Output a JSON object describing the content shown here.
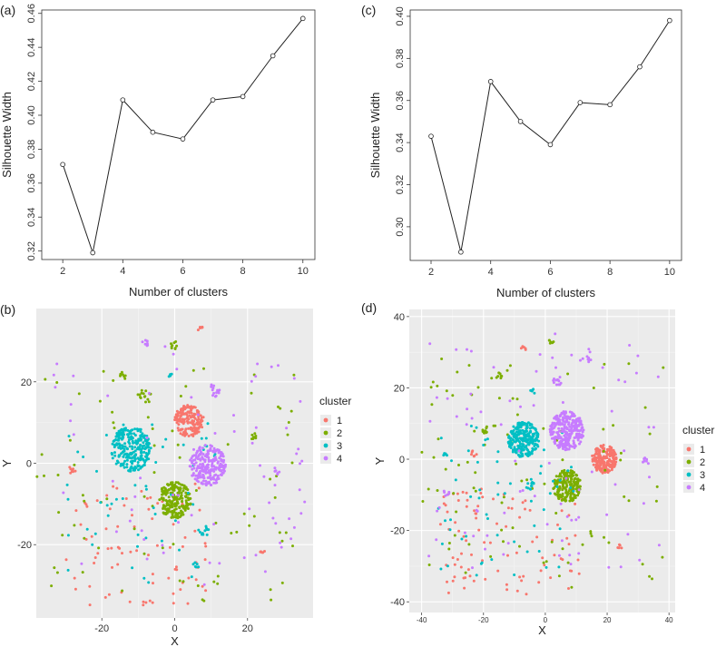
{
  "chart_data": [
    {
      "panel": "(a)",
      "type": "line",
      "xlabel": "Number of clusters",
      "ylabel": "Silhouette Width",
      "x": [
        2,
        3,
        4,
        5,
        6,
        7,
        8,
        9,
        10
      ],
      "y": [
        0.371,
        0.319,
        0.409,
        0.39,
        0.386,
        0.409,
        0.411,
        0.435,
        0.457
      ],
      "xlim": [
        1.3,
        10.4
      ],
      "ylim": [
        0.315,
        0.462
      ],
      "xticks": [
        2,
        4,
        6,
        8,
        10
      ],
      "yticks": [
        "0.32",
        "0.34",
        "0.36",
        "0.38",
        "0.40",
        "0.42",
        "0.44",
        "0.46"
      ],
      "grid": false
    },
    {
      "panel": "(c)",
      "type": "line",
      "xlabel": "Number of clusters",
      "ylabel": "Silhouette Width",
      "x": [
        2,
        3,
        4,
        5,
        6,
        7,
        8,
        9,
        10
      ],
      "y": [
        0.343,
        0.288,
        0.369,
        0.35,
        0.339,
        0.359,
        0.358,
        0.376,
        0.398
      ],
      "xlim": [
        1.3,
        10.4
      ],
      "ylim": [
        0.284,
        0.403
      ],
      "xticks": [
        2,
        4,
        6,
        8,
        10
      ],
      "yticks": [
        "0.30",
        "0.32",
        "0.34",
        "0.36",
        "0.38",
        "0.40"
      ],
      "grid": false
    },
    {
      "panel": "(b)",
      "type": "scatter",
      "xlabel": "X",
      "ylabel": "Y",
      "xlim": [
        -38,
        38
      ],
      "ylim": [
        -38,
        38
      ],
      "xticks": [
        "-20",
        "0",
        "20"
      ],
      "yticks": [
        "-20",
        "0",
        "20"
      ],
      "background": "#ebebeb",
      "grid": true,
      "legend": {
        "title": "cluster",
        "position": "right"
      },
      "series": [
        {
          "name": "1",
          "color": "#F8766D",
          "blobs": [
            {
              "center": [
                4,
                10.5
              ],
              "radius": 4,
              "n": 180
            },
            {
              "center": [
                7,
                33
              ],
              "radius": 0.8,
              "n": 6
            },
            {
              "center": [
                -28,
                -1.5
              ],
              "radius": 1.2,
              "n": 8
            },
            {
              "center": [
                24,
                -22
              ],
              "radius": 0.8,
              "n": 5
            }
          ],
          "scatter": {
            "region": [
              -30,
              -35,
              10,
              -5
            ],
            "n": 85
          }
        },
        {
          "name": "2",
          "color": "#7CAE00",
          "blobs": [
            {
              "center": [
                0,
                -9
              ],
              "radius": 4.5,
              "n": 200
            },
            {
              "center": [
                -8,
                16.5
              ],
              "radius": 1.8,
              "n": 14
            },
            {
              "center": [
                0,
                29
              ],
              "radius": 1.2,
              "n": 9
            },
            {
              "center": [
                -14,
                21.5
              ],
              "radius": 1.0,
              "n": 7
            },
            {
              "center": [
                22,
                6.5
              ],
              "radius": 1.0,
              "n": 7
            }
          ],
          "scatter": {
            "region": [
              -38,
              -34,
              35,
              25
            ],
            "n": 85
          }
        },
        {
          "name": "3",
          "color": "#00BFC4",
          "blobs": [
            {
              "center": [
                -12,
                3.5
              ],
              "radius": 5.5,
              "n": 260
            },
            {
              "center": [
                8,
                -16.5
              ],
              "radius": 1.5,
              "n": 12
            },
            {
              "center": [
                6,
                -25
              ],
              "radius": 1.0,
              "n": 6
            },
            {
              "center": [
                -1,
                21.5
              ],
              "radius": 0.8,
              "n": 5
            }
          ],
          "scatter": {
            "region": [
              -30,
              -30,
              12,
              12
            ],
            "n": 55
          }
        },
        {
          "name": "4",
          "color": "#C77CFF",
          "blobs": [
            {
              "center": [
                9,
                -0.5
              ],
              "radius": 5,
              "n": 240
            },
            {
              "center": [
                11,
                18
              ],
              "radius": 1.8,
              "n": 14
            },
            {
              "center": [
                -8,
                29.5
              ],
              "radius": 1.0,
              "n": 7
            },
            {
              "center": [
                28,
                -2
              ],
              "radius": 1.0,
              "n": 6
            }
          ],
          "scatter": {
            "region": [
              -35,
              -30,
              36,
              30
            ],
            "n": 75
          }
        }
      ]
    },
    {
      "panel": "(d)",
      "type": "scatter",
      "xlabel": "X",
      "ylabel": "Y",
      "xlim": [
        -44,
        42
      ],
      "ylim": [
        -43,
        42
      ],
      "xticks": [
        "-40",
        "-20",
        "0",
        "20",
        "40"
      ],
      "yticks": [
        "-40",
        "-20",
        "0",
        "20",
        "40"
      ],
      "background": "#ebebeb",
      "grid": true,
      "legend": {
        "title": "cluster",
        "position": "right"
      },
      "series": [
        {
          "name": "1",
          "color": "#F8766D",
          "blobs": [
            {
              "center": [
                19,
                0
              ],
              "radius": 4,
              "n": 200
            },
            {
              "center": [
                -23,
                1.5
              ],
              "radius": 1.0,
              "n": 7
            },
            {
              "center": [
                -7,
                31
              ],
              "radius": 0.8,
              "n": 6
            },
            {
              "center": [
                24,
                -24.5
              ],
              "radius": 0.8,
              "n": 5
            }
          ],
          "scatter": {
            "region": [
              -34,
              -38,
              12,
              -8
            ],
            "n": 95
          }
        },
        {
          "name": "2",
          "color": "#7CAE00",
          "blobs": [
            {
              "center": [
                7,
                -7.5
              ],
              "radius": 4.5,
              "n": 210
            },
            {
              "center": [
                -19,
                8.5
              ],
              "radius": 1.5,
              "n": 10
            },
            {
              "center": [
                2,
                33
              ],
              "radius": 1.0,
              "n": 7
            },
            {
              "center": [
                -15,
                23.5
              ],
              "radius": 1.0,
              "n": 7
            }
          ],
          "scatter": {
            "region": [
              -41,
              -36,
              40,
              30
            ],
            "n": 95
          }
        },
        {
          "name": "3",
          "color": "#00BFC4",
          "blobs": [
            {
              "center": [
                -7,
                5.5
              ],
              "radius": 5,
              "n": 250
            },
            {
              "center": [
                -5,
                -7
              ],
              "radius": 1.6,
              "n": 12
            },
            {
              "center": [
                -32,
                1.5
              ],
              "radius": 1.0,
              "n": 7
            },
            {
              "center": [
                -4,
                19
              ],
              "radius": 1.0,
              "n": 5
            }
          ],
          "scatter": {
            "region": [
              -35,
              -34,
              10,
              10
            ],
            "n": 60
          }
        },
        {
          "name": "4",
          "color": "#C77CFF",
          "blobs": [
            {
              "center": [
                7,
                8
              ],
              "radius": 5.5,
              "n": 290
            },
            {
              "center": [
                4,
                22
              ],
              "radius": 1.5,
              "n": 12
            },
            {
              "center": [
                14,
                28
              ],
              "radius": 1.0,
              "n": 6
            },
            {
              "center": [
                32,
                0
              ],
              "radius": 1.0,
              "n": 6
            },
            {
              "center": [
                -32,
                -9.5
              ],
              "radius": 1.0,
              "n": 6
            }
          ],
          "scatter": {
            "region": [
              -38,
              -32,
              38,
              36
            ],
            "n": 85
          }
        }
      ]
    }
  ]
}
